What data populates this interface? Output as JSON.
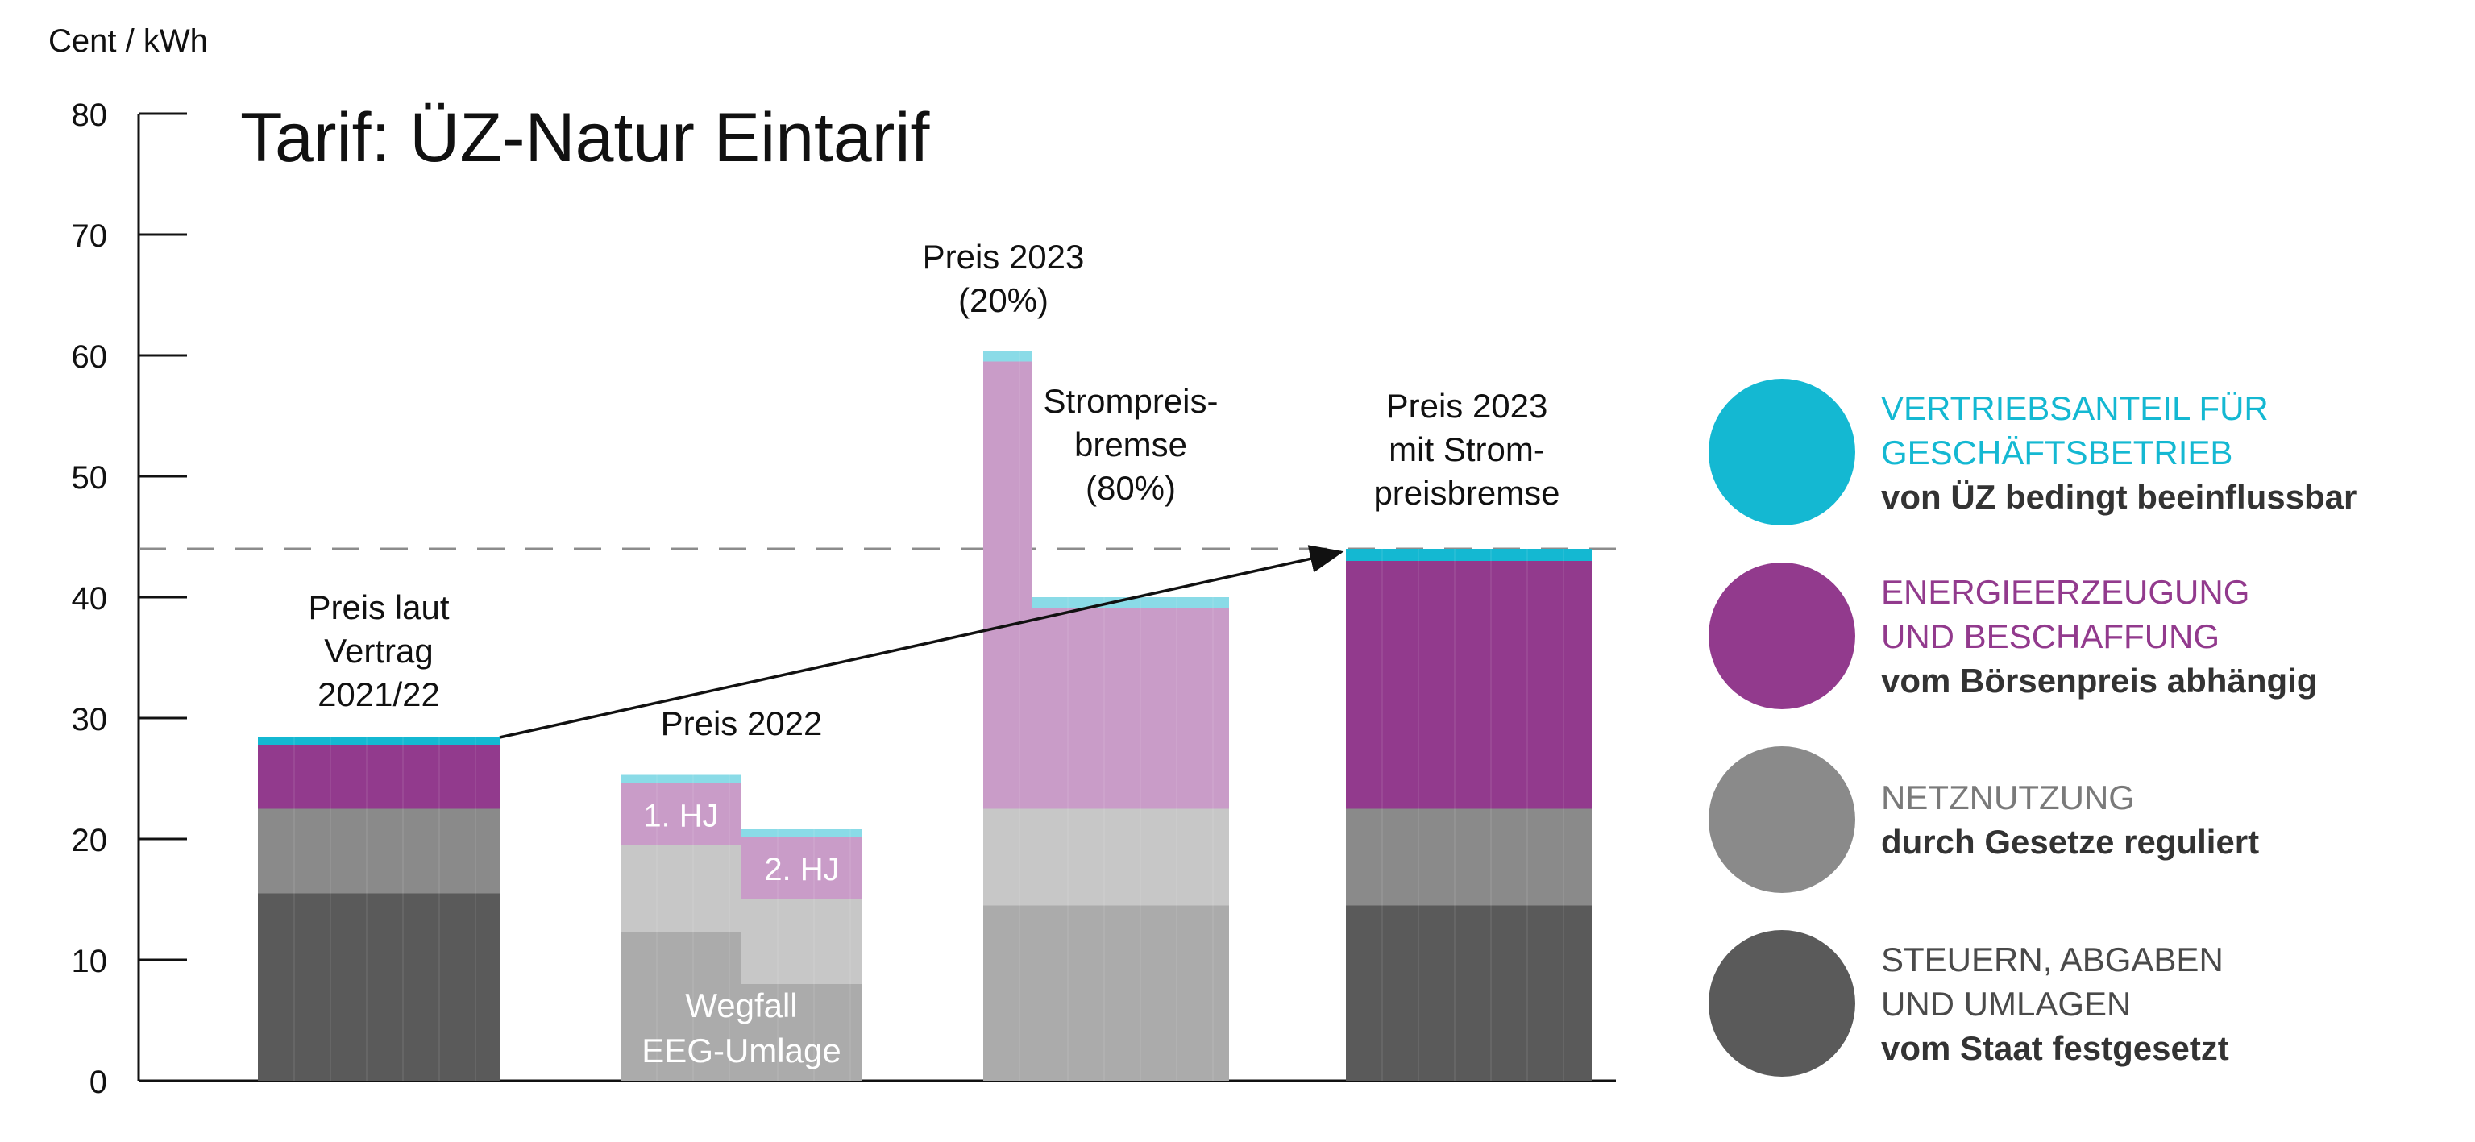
{
  "chart_data": {
    "type": "bar",
    "stacked": true,
    "title": "Tarif: ÜZ-Natur Eintarif",
    "ylabel": "Cent / kWh",
    "ylim": [
      0,
      80
    ],
    "yticks": [
      0,
      10,
      20,
      30,
      40,
      50,
      60,
      70,
      80
    ],
    "reference_line": 44,
    "layer_order": [
      "steuern",
      "netz",
      "energie",
      "vertrieb"
    ],
    "groups": [
      {
        "label": "Preis laut Vertrag 2021/22",
        "label_lines": [
          "Preis laut",
          "Vertrag",
          "2021/22"
        ],
        "bars": [
          {
            "values": {
              "steuern": 15.5,
              "netz": 7,
              "energie": 5.3,
              "vertrieb": 0.6
            }
          }
        ]
      },
      {
        "label": "Preis 2022",
        "label_lines": [
          "Preis 2022"
        ],
        "bars": [
          {
            "segment_label": "1. HJ",
            "values": {
              "steuern": 12.3,
              "netz": 7.2,
              "energie": 5.1,
              "vertrieb": 0.7
            }
          },
          {
            "segment_label": "2. HJ",
            "values": {
              "steuern": 8,
              "netz": 7,
              "energie": 5.2,
              "vertrieb": 0.6
            }
          }
        ],
        "annotation_lines": [
          "Wegfall",
          "EEG-Umlage"
        ]
      },
      {
        "label": "Preis 2023 (20%)",
        "label_lines": [
          "Preis 2023",
          "(20%)"
        ],
        "second_label_lines": [
          "Strompreis-",
          "bremse",
          "(80%)"
        ],
        "bars": [
          {
            "values": {
              "steuern": 14.5,
              "netz": 8,
              "energie": 37,
              "vertrieb": 0.9
            }
          },
          {
            "values": {
              "steuern": 14.5,
              "netz": 8,
              "energie": 16.6,
              "vertrieb": 0.9
            }
          }
        ]
      },
      {
        "label": "Preis 2023 mit Strompreisbremse",
        "label_lines": [
          "Preis 2023",
          "mit Strom-",
          "preisbremse"
        ],
        "bars": [
          {
            "values": {
              "steuern": 14.5,
              "netz": 8,
              "energie": 20.5,
              "vertrieb": 1
            }
          }
        ]
      }
    ],
    "arrow": {
      "from_group": 0,
      "to_group": 3
    }
  },
  "colors": {
    "vertrieb": "#14b8d2",
    "vertrieb_light": "#8adbe7",
    "energie": "#923a8d",
    "energie_light": "#c99cc8",
    "netz": "#8a8a8a",
    "netz_light": "#c7c7c7",
    "steuern": "#5a5a5a",
    "steuern_light": "#ababab",
    "axis": "#111111",
    "refline": "#8c8c8c"
  },
  "legend": [
    {
      "key": "vertrieb",
      "title_lines": [
        "VERTRIEBSANTEIL FÜR",
        "GESCHÄFTSBETRIEB"
      ],
      "subtitle": "von ÜZ bedingt beeinflussbar"
    },
    {
      "key": "energie",
      "title_lines": [
        "ENERGIEERZEUGUNG",
        "UND BESCHAFFUNG"
      ],
      "subtitle": "vom Börsenpreis  abhängig"
    },
    {
      "key": "netz",
      "title_lines": [
        "NETZNUTZUNG"
      ],
      "subtitle": "durch Gesetze reguliert"
    },
    {
      "key": "steuern",
      "title_lines": [
        "STEUERN, ABGABEN",
        "UND UMLAGEN"
      ],
      "subtitle": "vom Staat festgesetzt"
    }
  ]
}
